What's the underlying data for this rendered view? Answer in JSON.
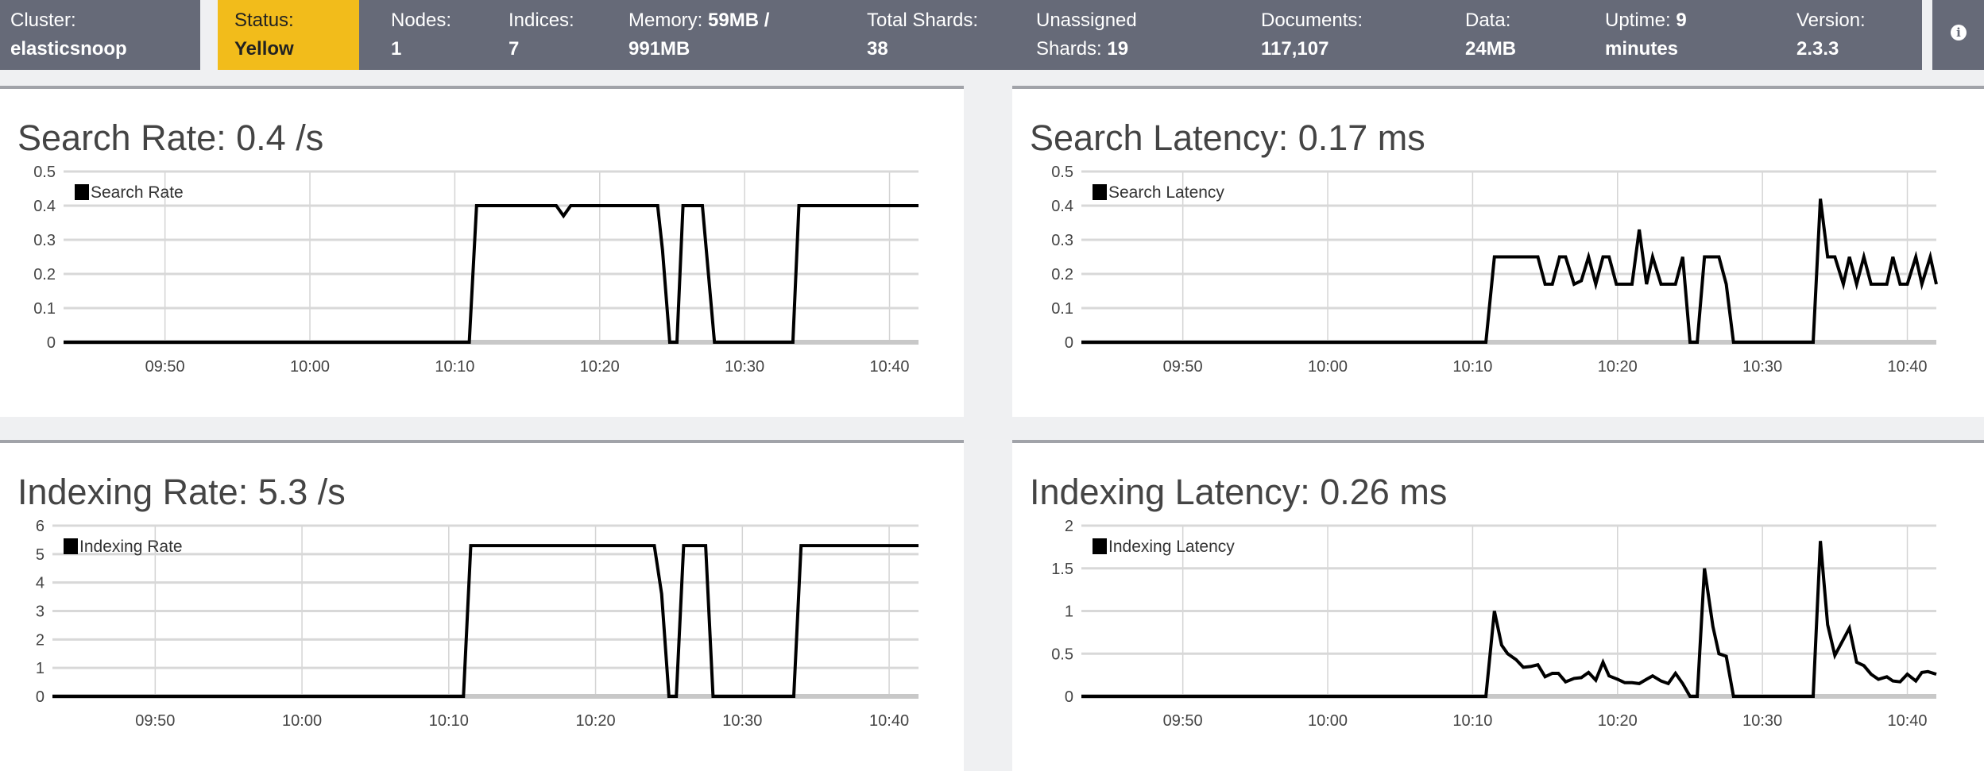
{
  "header": {
    "cluster": {
      "label": "Cluster:",
      "value": "elasticsnoop"
    },
    "status": {
      "label": "Status:",
      "value": "Yellow",
      "color": "#f2bc1b"
    },
    "stats": [
      {
        "label": "Nodes:",
        "value": "1"
      },
      {
        "label": "Indices:",
        "value": "7"
      },
      {
        "label": "Memory:",
        "value": "59MB / 991MB"
      },
      {
        "label": "Total Shards:",
        "value": "38"
      },
      {
        "label": "Unassigned Shards:",
        "value": "19"
      },
      {
        "label": "Documents:",
        "value": "117,107"
      },
      {
        "label": "Data:",
        "value": "24MB"
      },
      {
        "label": "Uptime:",
        "value": "9 minutes"
      },
      {
        "label": "Version:",
        "value": "2.3.3"
      }
    ],
    "info_icon": "info-circle-icon",
    "bar_color": "#666a78"
  },
  "chart_data": [
    {
      "type": "line",
      "title": "Search Rate: 0.4 /s",
      "legend": "Search Rate",
      "legend_position": "top-left",
      "ylim": [
        0,
        0.5
      ],
      "yticks": [
        "0",
        "0.1",
        "0.2",
        "0.3",
        "0.4",
        "0.5"
      ],
      "yvals": [
        0,
        0.1,
        0.2,
        0.3,
        0.4,
        0.5
      ],
      "xlim": [
        "09:43:00",
        "10:42:00"
      ],
      "xticks": [
        "09:50",
        "10:00",
        "10:10",
        "10:20",
        "10:30",
        "10:40"
      ],
      "grid": true,
      "color": "#000000",
      "points": [
        [
          "09:43:00",
          0
        ],
        [
          "10:11:00",
          0
        ],
        [
          "10:11:30",
          0.4
        ],
        [
          "10:17:00",
          0.4
        ],
        [
          "10:17:30",
          0.37
        ],
        [
          "10:18:00",
          0.4
        ],
        [
          "10:24:00",
          0.4
        ],
        [
          "10:24:20",
          0.27
        ],
        [
          "10:24:50",
          0
        ],
        [
          "10:25:20",
          0
        ],
        [
          "10:25:45",
          0.4
        ],
        [
          "10:27:05",
          0.4
        ],
        [
          "10:27:55",
          0
        ],
        [
          "10:33:20",
          0
        ],
        [
          "10:33:45",
          0.4
        ],
        [
          "10:42:00",
          0.4
        ]
      ]
    },
    {
      "type": "line",
      "title": "Search Latency: 0.17 ms",
      "legend": "Search Latency",
      "legend_position": "top-left",
      "ylim": [
        0,
        0.5
      ],
      "yticks": [
        "0",
        "0.1",
        "0.2",
        "0.3",
        "0.4",
        "0.5"
      ],
      "yvals": [
        0,
        0.1,
        0.2,
        0.3,
        0.4,
        0.5
      ],
      "xlim": [
        "09:43:00",
        "10:42:00"
      ],
      "xticks": [
        "09:50",
        "10:00",
        "10:10",
        "10:20",
        "10:30",
        "10:40"
      ],
      "grid": true,
      "color": "#000000",
      "points": [
        [
          "09:43:00",
          0
        ],
        [
          "10:10:55",
          0
        ],
        [
          "10:11:30",
          0.25
        ],
        [
          "10:14:30",
          0.25
        ],
        [
          "10:15:00",
          0.17
        ],
        [
          "10:15:30",
          0.17
        ],
        [
          "10:16:00",
          0.25
        ],
        [
          "10:16:25",
          0.25
        ],
        [
          "10:17:00",
          0.17
        ],
        [
          "10:17:30",
          0.18
        ],
        [
          "10:18:00",
          0.25
        ],
        [
          "10:18:30",
          0.17
        ],
        [
          "10:19:00",
          0.25
        ],
        [
          "10:19:25",
          0.25
        ],
        [
          "10:19:55",
          0.17
        ],
        [
          "10:21:00",
          0.17
        ],
        [
          "10:21:30",
          0.33
        ],
        [
          "10:22:00",
          0.17
        ],
        [
          "10:22:25",
          0.25
        ],
        [
          "10:23:00",
          0.17
        ],
        [
          "10:24:00",
          0.17
        ],
        [
          "10:24:30",
          0.25
        ],
        [
          "10:25:00",
          0
        ],
        [
          "10:25:30",
          0
        ],
        [
          "10:26:00",
          0.25
        ],
        [
          "10:27:00",
          0.25
        ],
        [
          "10:27:30",
          0.17
        ],
        [
          "10:28:00",
          0
        ],
        [
          "10:33:30",
          0
        ],
        [
          "10:34:00",
          0.42
        ],
        [
          "10:34:30",
          0.25
        ],
        [
          "10:35:00",
          0.25
        ],
        [
          "10:35:35",
          0.17
        ],
        [
          "10:36:00",
          0.25
        ],
        [
          "10:36:30",
          0.17
        ],
        [
          "10:37:00",
          0.25
        ],
        [
          "10:37:30",
          0.17
        ],
        [
          "10:38:35",
          0.17
        ],
        [
          "10:39:00",
          0.25
        ],
        [
          "10:39:30",
          0.17
        ],
        [
          "10:40:00",
          0.17
        ],
        [
          "10:40:35",
          0.25
        ],
        [
          "10:41:00",
          0.17
        ],
        [
          "10:41:35",
          0.25
        ],
        [
          "10:42:00",
          0.17
        ]
      ]
    },
    {
      "type": "line",
      "title": "Indexing Rate: 5.3 /s",
      "legend": "Indexing Rate",
      "legend_position": "top-left",
      "ylim": [
        0,
        6
      ],
      "yticks": [
        "0",
        "1",
        "2",
        "3",
        "4",
        "5",
        "6"
      ],
      "yvals": [
        0,
        1,
        2,
        3,
        4,
        5,
        6
      ],
      "xlim": [
        "09:43:00",
        "10:42:00"
      ],
      "xticks": [
        "09:50",
        "10:00",
        "10:10",
        "10:20",
        "10:30",
        "10:40"
      ],
      "grid": true,
      "color": "#000000",
      "points": [
        [
          "09:43:00",
          0
        ],
        [
          "10:11:00",
          0
        ],
        [
          "10:11:30",
          5.3
        ],
        [
          "10:24:00",
          5.3
        ],
        [
          "10:24:30",
          3.6
        ],
        [
          "10:25:00",
          0
        ],
        [
          "10:25:30",
          0
        ],
        [
          "10:26:00",
          5.3
        ],
        [
          "10:27:30",
          5.3
        ],
        [
          "10:28:00",
          0
        ],
        [
          "10:33:30",
          0
        ],
        [
          "10:34:00",
          5.3
        ],
        [
          "10:42:00",
          5.3
        ]
      ]
    },
    {
      "type": "line",
      "title": "Indexing Latency: 0.26 ms",
      "legend": "Indexing Latency",
      "legend_position": "top-left",
      "ylim": [
        0,
        2
      ],
      "yticks": [
        "0",
        "0.5",
        "1",
        "1.5",
        "2"
      ],
      "yvals": [
        0,
        0.5,
        1,
        1.5,
        2
      ],
      "xlim": [
        "09:43:00",
        "10:42:00"
      ],
      "xticks": [
        "09:50",
        "10:00",
        "10:10",
        "10:20",
        "10:30",
        "10:40"
      ],
      "grid": true,
      "color": "#000000",
      "points": [
        [
          "09:43:00",
          0
        ],
        [
          "10:10:55",
          0
        ],
        [
          "10:11:30",
          1.0
        ],
        [
          "10:12:00",
          0.6
        ],
        [
          "10:12:25",
          0.5
        ],
        [
          "10:13:00",
          0.43
        ],
        [
          "10:13:30",
          0.34
        ],
        [
          "10:14:00",
          0.35
        ],
        [
          "10:14:30",
          0.37
        ],
        [
          "10:15:00",
          0.23
        ],
        [
          "10:15:30",
          0.27
        ],
        [
          "10:15:55",
          0.27
        ],
        [
          "10:16:25",
          0.17
        ],
        [
          "10:17:00",
          0.21
        ],
        [
          "10:17:30",
          0.22
        ],
        [
          "10:18:00",
          0.28
        ],
        [
          "10:18:30",
          0.19
        ],
        [
          "10:19:00",
          0.4
        ],
        [
          "10:19:25",
          0.24
        ],
        [
          "10:20:00",
          0.2
        ],
        [
          "10:20:30",
          0.16
        ],
        [
          "10:21:00",
          0.16
        ],
        [
          "10:21:30",
          0.15
        ],
        [
          "10:22:00",
          0.2
        ],
        [
          "10:22:25",
          0.24
        ],
        [
          "10:23:00",
          0.18
        ],
        [
          "10:23:30",
          0.15
        ],
        [
          "10:24:00",
          0.27
        ],
        [
          "10:24:30",
          0.15
        ],
        [
          "10:25:00",
          0
        ],
        [
          "10:25:30",
          0
        ],
        [
          "10:26:00",
          1.5
        ],
        [
          "10:26:35",
          0.82
        ],
        [
          "10:27:00",
          0.5
        ],
        [
          "10:27:30",
          0.47
        ],
        [
          "10:28:00",
          0
        ],
        [
          "10:33:30",
          0
        ],
        [
          "10:34:00",
          1.82
        ],
        [
          "10:34:30",
          0.84
        ],
        [
          "10:35:00",
          0.48
        ],
        [
          "10:36:00",
          0.8
        ],
        [
          "10:36:30",
          0.4
        ],
        [
          "10:37:00",
          0.36
        ],
        [
          "10:37:30",
          0.26
        ],
        [
          "10:38:00",
          0.2
        ],
        [
          "10:38:35",
          0.23
        ],
        [
          "10:39:00",
          0.18
        ],
        [
          "10:39:30",
          0.17
        ],
        [
          "10:40:00",
          0.26
        ],
        [
          "10:40:35",
          0.18
        ],
        [
          "10:41:00",
          0.28
        ],
        [
          "10:41:25",
          0.29
        ],
        [
          "10:42:00",
          0.26
        ]
      ]
    }
  ]
}
